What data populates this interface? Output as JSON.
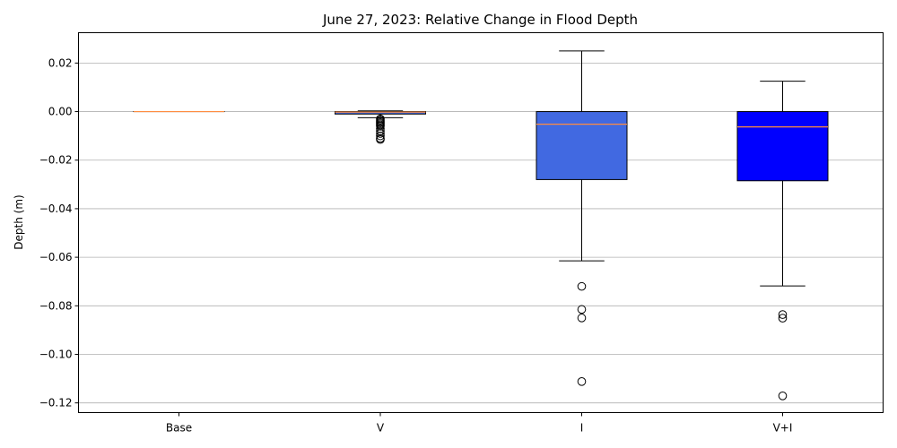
{
  "chart_data": {
    "type": "boxplot",
    "title": "June 27, 2023: Relative Change in Flood Depth",
    "xlabel": "",
    "ylabel": "Depth (m)",
    "ylim": [
      -0.124,
      0.0325
    ],
    "yticks": [
      0.02,
      0.0,
      -0.02,
      -0.04,
      -0.06,
      -0.08,
      -0.1,
      -0.12
    ],
    "ytick_labels": [
      "0.02",
      "0.00",
      "−0.02",
      "−0.04",
      "−0.06",
      "−0.08",
      "−0.10",
      "−0.12"
    ],
    "grid": "horizontal",
    "colors": {
      "median": "#ff8c40",
      "whisker": "#000000",
      "grid": "#b0b0b0"
    },
    "categories": [
      "Base",
      "V",
      "I",
      "V+I"
    ],
    "boxes": [
      {
        "name": "Base",
        "color": "#ffffff",
        "q1": 0.0,
        "median": 0.0,
        "q3": 0.0,
        "whisker_low": 0.0,
        "whisker_high": 0.0,
        "outliers": []
      },
      {
        "name": "V",
        "color": "#4169e1",
        "q1": -0.001,
        "median": -0.0002,
        "q3": 0.0,
        "whisker_low": -0.0025,
        "whisker_high": 0.0003,
        "outliers": [
          -0.003,
          -0.0035,
          -0.004,
          -0.0045,
          -0.005,
          -0.0055,
          -0.006,
          -0.007,
          -0.008,
          -0.009,
          -0.01,
          -0.011,
          -0.0115
        ]
      },
      {
        "name": "I",
        "color": "#4169e1",
        "q1": -0.028,
        "median": -0.0052,
        "q3": 0.0,
        "whisker_low": -0.0615,
        "whisker_high": 0.025,
        "outliers": [
          -0.072,
          -0.0815,
          -0.085,
          -0.1112
        ]
      },
      {
        "name": "V+I",
        "color": "#0000ff",
        "q1": -0.0285,
        "median": -0.0063,
        "q3": 0.0,
        "whisker_low": -0.0718,
        "whisker_high": 0.0125,
        "outliers": [
          -0.0836,
          -0.0851,
          -0.1171
        ]
      }
    ]
  }
}
